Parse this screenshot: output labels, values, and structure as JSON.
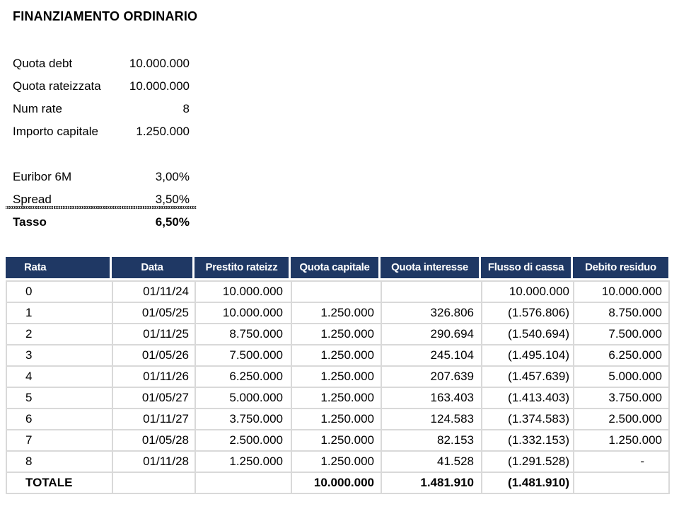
{
  "title": "FINANZIAMENTO ORDINARIO",
  "params": [
    {
      "label": "Quota debt",
      "value": "10.000.000"
    },
    {
      "label": "Quota rateizzata",
      "value": "10.000.000"
    },
    {
      "label": "Num rate",
      "value": "8"
    },
    {
      "label": "Importo capitale",
      "value": "1.250.000"
    }
  ],
  "rates": [
    {
      "label": "Euribor 6M",
      "value": "3,00%"
    },
    {
      "label": "Spread",
      "value": "3,50%"
    },
    {
      "label": "Tasso",
      "value": "6,50%"
    }
  ],
  "table": {
    "columns": [
      "Rata",
      "Data",
      "Prestito rateizz",
      "Quota capitale",
      "Quota interesse",
      "Flusso di cassa",
      "Debito residuo"
    ],
    "rows": [
      [
        "0",
        "01/11/24",
        "10.000.000",
        "",
        "",
        "10.000.000",
        "10.000.000"
      ],
      [
        "1",
        "01/05/25",
        "10.000.000",
        "1.250.000",
        "326.806",
        "(1.576.806)",
        "8.750.000"
      ],
      [
        "2",
        "01/11/25",
        "8.750.000",
        "1.250.000",
        "290.694",
        "(1.540.694)",
        "7.500.000"
      ],
      [
        "3",
        "01/05/26",
        "7.500.000",
        "1.250.000",
        "245.104",
        "(1.495.104)",
        "6.250.000"
      ],
      [
        "4",
        "01/11/26",
        "6.250.000",
        "1.250.000",
        "207.639",
        "(1.457.639)",
        "5.000.000"
      ],
      [
        "5",
        "01/05/27",
        "5.000.000",
        "1.250.000",
        "163.403",
        "(1.413.403)",
        "3.750.000"
      ],
      [
        "6",
        "01/11/27",
        "3.750.000",
        "1.250.000",
        "124.583",
        "(1.374.583)",
        "2.500.000"
      ],
      [
        "7",
        "01/05/28",
        "2.500.000",
        "1.250.000",
        "82.153",
        "(1.332.153)",
        "1.250.000"
      ],
      [
        "8",
        "01/11/28",
        "1.250.000",
        "1.250.000",
        "41.528",
        "(1.291.528)",
        "-"
      ]
    ],
    "total_row": [
      "TOTALE",
      "",
      "",
      "10.000.000",
      "1.481.910",
      "(1.481.910)",
      ""
    ]
  },
  "colors": {
    "header_bg": "#1f3864",
    "header_text": "#ffffff",
    "grid": "#d9d9d9",
    "text": "#000000"
  }
}
